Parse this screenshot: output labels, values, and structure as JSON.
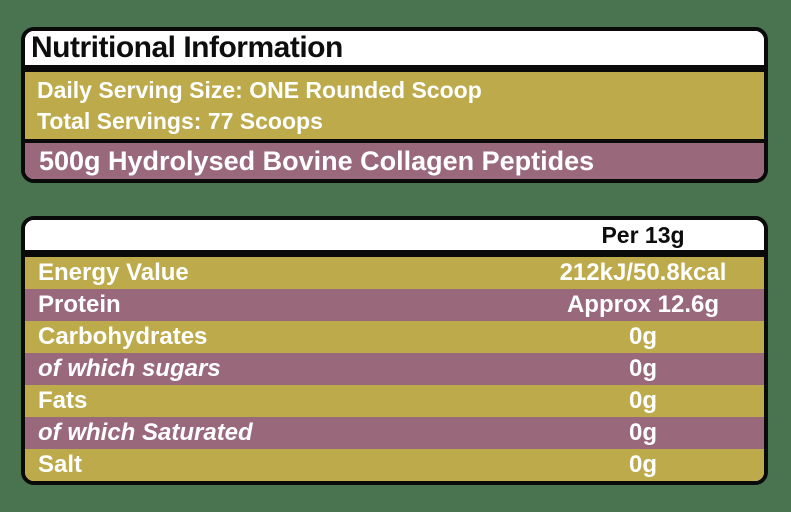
{
  "colors": {
    "background_green": "#4A7350",
    "olive": "#BCAA4B",
    "mauve": "#99697B",
    "border_black": "#0A0A0A",
    "text_white": "#FFFFFF",
    "text_black": "#0D0D0D"
  },
  "header_card": {
    "title": "Nutritional Information",
    "serving_size_line": "Daily Serving Size: ONE Rounded Scoop",
    "total_servings_line": "Total Servings: 77 Scoops",
    "contents_line": "500g Hydrolysed Bovine Collagen Peptides"
  },
  "nutrition_table": {
    "column_header": "Per 13g",
    "rows": [
      {
        "label": "Energy Value",
        "value": "212kJ/50.8kcal",
        "emphasis": "bold"
      },
      {
        "label": "Protein",
        "value": "Approx 12.6g",
        "emphasis": "bold"
      },
      {
        "label": "Carbohydrates",
        "value": "0g",
        "emphasis": "bold"
      },
      {
        "label": "of which sugars",
        "value": "0g",
        "emphasis": "italic"
      },
      {
        "label": "Fats",
        "value": "0g",
        "emphasis": "bold"
      },
      {
        "label": "of which Saturated",
        "value": "0g",
        "emphasis": "italic"
      },
      {
        "label": "Salt",
        "value": "0g",
        "emphasis": "bold"
      }
    ]
  }
}
